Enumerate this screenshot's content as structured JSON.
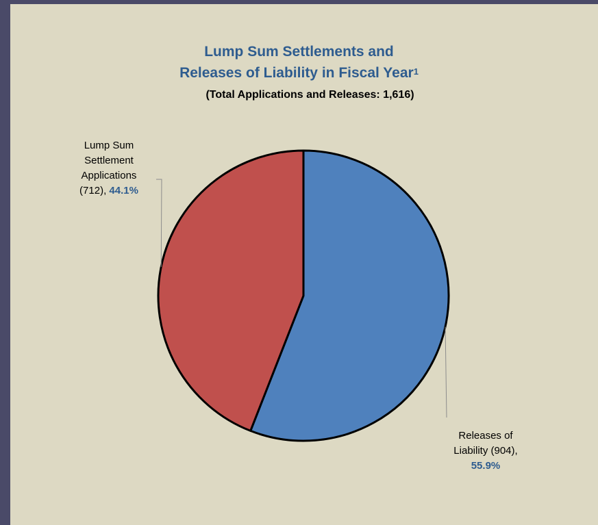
{
  "chart_data": {
    "type": "pie",
    "title_line1": "Lump Sum Settlements and",
    "title_line2": "Releases of Liability in Fiscal Year",
    "title_footnote": "1",
    "subtitle": "(Total Applications and Releases: 1,616)",
    "slices": [
      {
        "name_lines": [
          "Releases of",
          "Liability (904),"
        ],
        "value": 904,
        "percent": 55.9,
        "percent_label": "55.9%",
        "color": "#4f81bd"
      },
      {
        "name_lines": [
          "Lump Sum",
          "Settlement",
          "Applications"
        ],
        "count_label": "(712),",
        "value": 712,
        "percent": 44.1,
        "percent_label": "44.1%",
        "color": "#c0504d"
      }
    ]
  }
}
